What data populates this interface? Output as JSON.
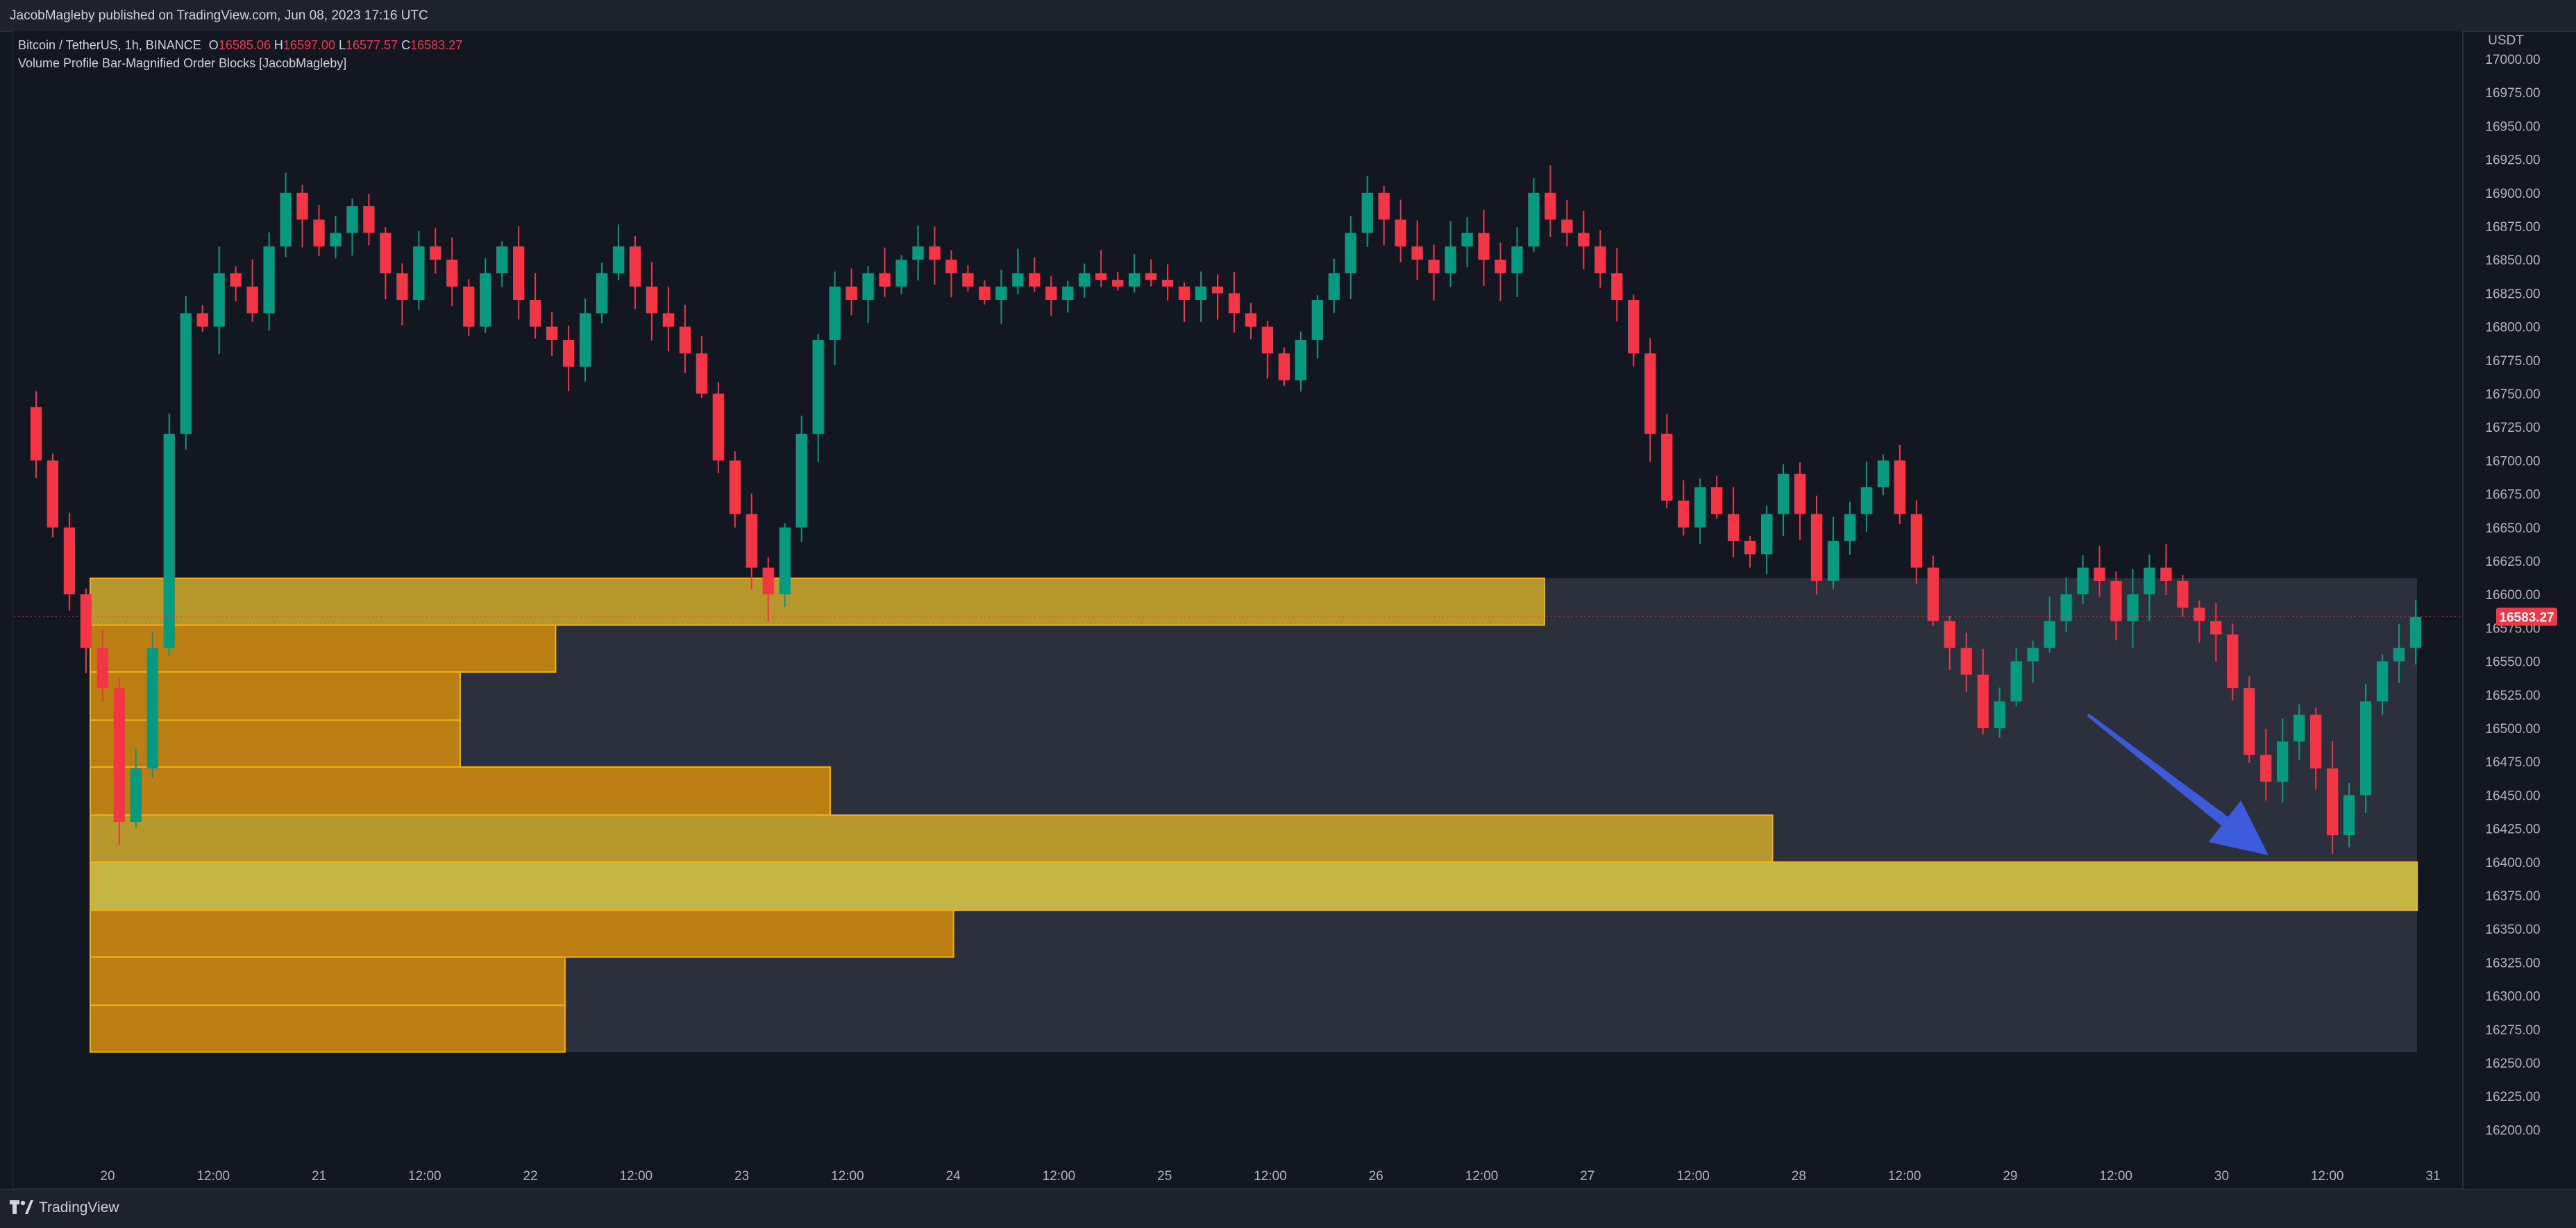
{
  "header": {
    "published": "JacobMagleby published on TradingView.com, Jun 08, 2023 17:16 UTC"
  },
  "legend": {
    "symbol": "Bitcoin / TetherUS, 1h, BINANCE",
    "open_label": "O",
    "open": "16585.06",
    "high_label": "H",
    "high": "16597.00",
    "low_label": "L",
    "low": "16577.57",
    "close_label": "C",
    "close": "16583.27",
    "indicator": "Volume Profile Bar-Magnified Order Blocks [JacobMagleby]"
  },
  "price_axis": {
    "currency": "USDT",
    "ticks": [
      "17000.00",
      "16975.00",
      "16950.00",
      "16925.00",
      "16900.00",
      "16875.00",
      "16850.00",
      "16825.00",
      "16800.00",
      "16775.00",
      "16750.00",
      "16725.00",
      "16700.00",
      "16675.00",
      "16650.00",
      "16625.00",
      "16600.00",
      "16575.00",
      "16550.00",
      "16525.00",
      "16500.00",
      "16475.00",
      "16450.00",
      "16425.00",
      "16400.00",
      "16375.00",
      "16350.00",
      "16325.00",
      "16300.00",
      "16275.00",
      "16250.00",
      "16225.00",
      "16200.00"
    ],
    "last_price": "16583.27",
    "last_price_value": 16583.27
  },
  "time_axis": {
    "ticks": [
      "20",
      "12:00",
      "21",
      "12:00",
      "22",
      "12:00",
      "23",
      "12:00",
      "24",
      "12:00",
      "25",
      "12:00",
      "26",
      "12:00",
      "27",
      "12:00",
      "28",
      "12:00",
      "29",
      "12:00",
      "30",
      "12:00",
      "31"
    ]
  },
  "colors": {
    "up": "#089981",
    "down": "#f23645",
    "profile_box": "#363a45",
    "vp_orange": "#c7860f",
    "vp_gold": "#c2a12b",
    "vp_poc": "#d2c244",
    "arrow": "#3b5bdb"
  },
  "chart_data": {
    "type": "candlestick",
    "symbol": "Bitcoin / TetherUS",
    "interval": "1h",
    "exchange": "BINANCE",
    "ylim": [
      16180,
      17010
    ],
    "volume_profile": {
      "range_top": 16612,
      "range_bottom": 16258,
      "bins": [
        {
          "top": 16612,
          "bottom": 16577,
          "fraction": 0.625
        },
        {
          "top": 16577,
          "bottom": 16542,
          "fraction": 0.2
        },
        {
          "top": 16542,
          "bottom": 16506,
          "fraction": 0.159
        },
        {
          "top": 16506,
          "bottom": 16471,
          "fraction": 0.159
        },
        {
          "top": 16471,
          "bottom": 16435,
          "fraction": 0.318
        },
        {
          "top": 16435,
          "bottom": 16400,
          "fraction": 0.723
        },
        {
          "top": 16400,
          "bottom": 16364,
          "fraction": 1.0
        },
        {
          "top": 16364,
          "bottom": 16329,
          "fraction": 0.371
        },
        {
          "top": 16329,
          "bottom": 16293,
          "fraction": 0.204
        },
        {
          "top": 16293,
          "bottom": 16258,
          "fraction": 0.204
        }
      ]
    },
    "price_path": [
      16740,
      16700,
      16650,
      16600,
      16560,
      16530,
      16430,
      16470,
      16560,
      16720,
      16810,
      16800,
      16840,
      16830,
      16810,
      16860,
      16900,
      16880,
      16860,
      16870,
      16890,
      16870,
      16840,
      16820,
      16860,
      16850,
      16830,
      16800,
      16840,
      16860,
      16820,
      16800,
      16790,
      16770,
      16810,
      16840,
      16860,
      16830,
      16810,
      16800,
      16780,
      16750,
      16700,
      16660,
      16620,
      16600,
      16650,
      16720,
      16790,
      16830,
      16820,
      16840,
      16830,
      16850,
      16860,
      16850,
      16840,
      16830,
      16820,
      16830,
      16840,
      16830,
      16820,
      16830,
      16840,
      16835,
      16830,
      16840,
      16835,
      16830,
      16820,
      16830,
      16825,
      16810,
      16800,
      16780,
      16760,
      16790,
      16820,
      16840,
      16870,
      16900,
      16880,
      16860,
      16850,
      16840,
      16860,
      16870,
      16850,
      16840,
      16860,
      16900,
      16880,
      16870,
      16860,
      16840,
      16820,
      16780,
      16720,
      16670,
      16650,
      16680,
      16660,
      16640,
      16630,
      16660,
      16690,
      16660,
      16610,
      16640,
      16660,
      16680,
      16700,
      16660,
      16620,
      16580,
      16560,
      16540,
      16500,
      16520,
      16550,
      16560,
      16580,
      16600,
      16620,
      16610,
      16580,
      16600,
      16620,
      16610,
      16590,
      16580,
      16570,
      16530,
      16480,
      16460,
      16490,
      16510,
      16470,
      16420,
      16450,
      16520,
      16550,
      16560,
      16583
    ],
    "annotation": {
      "type": "arrow",
      "from_price": 16510,
      "to_price": 16405
    }
  }
}
